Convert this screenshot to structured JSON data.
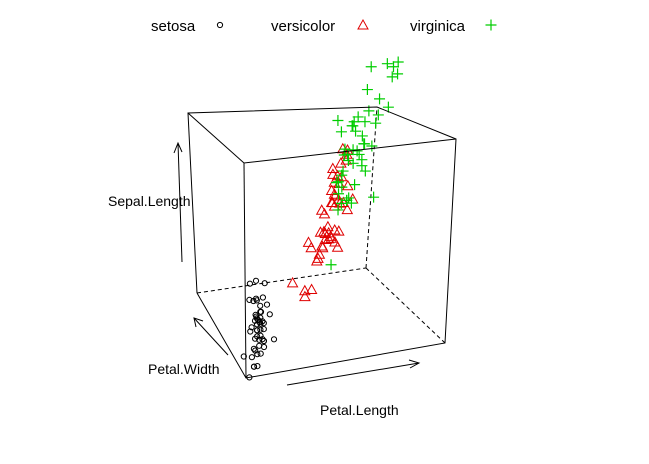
{
  "chart_data": {
    "type": "scatter",
    "projection": "3d-box",
    "title": "",
    "xlabel": "Petal.Length",
    "ylabel": "Petal.Width",
    "zlabel": "Sepal.Length",
    "xlim": [
      1,
      6.9
    ],
    "ylim": [
      0.1,
      2.5
    ],
    "zlim": [
      4.3,
      7.9
    ],
    "legend_position": "top",
    "grid": false,
    "series": [
      {
        "name": "setosa",
        "marker": "circle",
        "color": "#000000",
        "points": [
          [
            1.4,
            0.2,
            5.1
          ],
          [
            1.4,
            0.2,
            4.9
          ],
          [
            1.3,
            0.2,
            4.7
          ],
          [
            1.5,
            0.2,
            4.6
          ],
          [
            1.4,
            0.2,
            5.0
          ],
          [
            1.7,
            0.4,
            5.4
          ],
          [
            1.4,
            0.3,
            4.6
          ],
          [
            1.5,
            0.2,
            5.0
          ],
          [
            1.4,
            0.2,
            4.4
          ],
          [
            1.5,
            0.1,
            4.9
          ],
          [
            1.5,
            0.2,
            5.4
          ],
          [
            1.6,
            0.2,
            4.8
          ],
          [
            1.4,
            0.1,
            4.8
          ],
          [
            1.1,
            0.1,
            4.3
          ],
          [
            1.2,
            0.2,
            5.8
          ],
          [
            1.5,
            0.4,
            5.7
          ],
          [
            1.3,
            0.4,
            5.4
          ],
          [
            1.4,
            0.3,
            5.1
          ],
          [
            1.7,
            0.3,
            5.7
          ],
          [
            1.5,
            0.3,
            5.1
          ],
          [
            1.7,
            0.2,
            5.4
          ],
          [
            1.5,
            0.4,
            5.1
          ],
          [
            1.0,
            0.2,
            4.6
          ],
          [
            1.7,
            0.5,
            5.1
          ],
          [
            1.9,
            0.2,
            4.8
          ],
          [
            1.6,
            0.2,
            5.0
          ],
          [
            1.6,
            0.4,
            5.0
          ],
          [
            1.5,
            0.2,
            5.2
          ],
          [
            1.4,
            0.2,
            5.2
          ],
          [
            1.6,
            0.2,
            4.7
          ],
          [
            1.6,
            0.2,
            4.8
          ],
          [
            1.5,
            0.4,
            5.4
          ],
          [
            1.5,
            0.1,
            5.2
          ],
          [
            1.4,
            0.2,
            5.5
          ],
          [
            1.5,
            0.2,
            4.9
          ],
          [
            1.2,
            0.2,
            5.0
          ],
          [
            1.3,
            0.2,
            5.5
          ],
          [
            1.4,
            0.1,
            4.9
          ],
          [
            1.3,
            0.2,
            4.4
          ],
          [
            1.5,
            0.2,
            5.1
          ],
          [
            1.3,
            0.3,
            5.0
          ],
          [
            1.3,
            0.3,
            4.5
          ],
          [
            1.3,
            0.2,
            4.4
          ],
          [
            1.6,
            0.6,
            5.0
          ],
          [
            1.9,
            0.4,
            5.1
          ],
          [
            1.4,
            0.3,
            4.8
          ],
          [
            1.6,
            0.2,
            5.1
          ],
          [
            1.4,
            0.2,
            4.6
          ],
          [
            1.5,
            0.2,
            5.3
          ],
          [
            1.4,
            0.2,
            5.0
          ]
        ]
      },
      {
        "name": "versicolor",
        "marker": "triangle",
        "color": "#DF0000",
        "points": [
          [
            4.7,
            1.4,
            7.0
          ],
          [
            4.5,
            1.5,
            6.4
          ],
          [
            4.9,
            1.5,
            6.9
          ],
          [
            4.0,
            1.3,
            5.5
          ],
          [
            4.6,
            1.5,
            6.5
          ],
          [
            4.5,
            1.3,
            5.7
          ],
          [
            4.7,
            1.6,
            6.3
          ],
          [
            3.3,
            1.0,
            4.9
          ],
          [
            4.6,
            1.3,
            6.6
          ],
          [
            3.9,
            1.4,
            5.2
          ],
          [
            3.5,
            1.0,
            5.0
          ],
          [
            4.2,
            1.5,
            5.9
          ],
          [
            4.0,
            1.0,
            6.0
          ],
          [
            4.7,
            1.4,
            6.1
          ],
          [
            3.6,
            1.3,
            5.6
          ],
          [
            4.4,
            1.4,
            6.7
          ],
          [
            4.5,
            1.5,
            5.6
          ],
          [
            4.1,
            1.0,
            5.8
          ],
          [
            4.5,
            1.5,
            6.2
          ],
          [
            3.9,
            1.1,
            5.6
          ],
          [
            4.8,
            1.8,
            5.9
          ],
          [
            4.0,
            1.3,
            6.1
          ],
          [
            4.9,
            1.5,
            6.3
          ],
          [
            4.7,
            1.2,
            6.1
          ],
          [
            4.3,
            1.3,
            6.4
          ],
          [
            4.4,
            1.4,
            6.6
          ],
          [
            4.8,
            1.4,
            6.8
          ],
          [
            5.0,
            1.7,
            6.7
          ],
          [
            4.5,
            1.5,
            6.0
          ],
          [
            3.5,
            1.0,
            5.7
          ],
          [
            3.8,
            1.1,
            5.5
          ],
          [
            3.7,
            1.0,
            5.5
          ],
          [
            3.9,
            1.2,
            5.8
          ],
          [
            5.1,
            1.6,
            6.0
          ],
          [
            4.5,
            1.5,
            5.4
          ],
          [
            4.5,
            1.6,
            6.0
          ],
          [
            4.7,
            1.5,
            6.7
          ],
          [
            4.4,
            1.3,
            6.3
          ],
          [
            4.1,
            1.3,
            5.6
          ],
          [
            4.0,
            1.3,
            5.5
          ],
          [
            4.4,
            1.2,
            5.5
          ],
          [
            4.6,
            1.4,
            6.1
          ],
          [
            4.0,
            1.2,
            5.8
          ],
          [
            3.3,
            1.0,
            5.0
          ],
          [
            4.2,
            1.3,
            5.6
          ],
          [
            4.2,
            1.2,
            5.7
          ],
          [
            4.2,
            1.3,
            5.7
          ],
          [
            4.3,
            1.3,
            6.2
          ],
          [
            3.0,
            1.1,
            5.1
          ],
          [
            4.1,
            1.3,
            5.7
          ]
        ]
      },
      {
        "name": "virginica",
        "marker": "plus",
        "color": "#00CD00",
        "points": [
          [
            6.0,
            2.5,
            6.3
          ],
          [
            5.1,
            1.9,
            5.8
          ],
          [
            5.9,
            2.1,
            7.1
          ],
          [
            5.6,
            1.8,
            6.3
          ],
          [
            5.8,
            2.2,
            6.5
          ],
          [
            6.6,
            2.1,
            7.6
          ],
          [
            4.5,
            1.7,
            4.9
          ],
          [
            6.3,
            1.8,
            7.3
          ],
          [
            5.8,
            1.8,
            6.7
          ],
          [
            6.1,
            2.5,
            7.2
          ],
          [
            5.1,
            2.0,
            6.5
          ],
          [
            5.3,
            1.9,
            6.4
          ],
          [
            5.5,
            2.1,
            6.8
          ],
          [
            5.0,
            2.0,
            5.7
          ],
          [
            5.1,
            2.4,
            5.8
          ],
          [
            5.3,
            2.3,
            6.4
          ],
          [
            5.5,
            1.8,
            6.5
          ],
          [
            6.7,
            2.2,
            7.7
          ],
          [
            6.9,
            2.3,
            7.7
          ],
          [
            5.0,
            1.5,
            6.0
          ],
          [
            5.7,
            2.3,
            6.9
          ],
          [
            4.9,
            2.0,
            5.6
          ],
          [
            6.7,
            2.0,
            7.7
          ],
          [
            4.9,
            1.8,
            6.3
          ],
          [
            5.7,
            2.1,
            6.7
          ],
          [
            6.0,
            1.8,
            7.2
          ],
          [
            4.8,
            1.8,
            6.2
          ],
          [
            4.9,
            1.8,
            6.1
          ],
          [
            5.6,
            2.1,
            6.4
          ],
          [
            5.8,
            1.6,
            7.2
          ],
          [
            6.1,
            1.9,
            7.4
          ],
          [
            6.4,
            2.0,
            7.9
          ],
          [
            5.6,
            2.2,
            6.4
          ],
          [
            5.1,
            1.5,
            6.3
          ],
          [
            5.6,
            1.4,
            6.1
          ],
          [
            6.1,
            2.3,
            7.7
          ],
          [
            5.6,
            2.4,
            6.3
          ],
          [
            5.5,
            1.8,
            6.4
          ],
          [
            4.8,
            1.8,
            6.0
          ],
          [
            5.4,
            2.1,
            6.9
          ],
          [
            5.6,
            2.4,
            6.7
          ],
          [
            5.1,
            2.3,
            6.9
          ],
          [
            5.1,
            1.9,
            5.8
          ],
          [
            5.9,
            2.3,
            6.8
          ],
          [
            5.7,
            2.5,
            6.7
          ],
          [
            5.2,
            2.3,
            6.7
          ],
          [
            5.0,
            1.9,
            6.3
          ],
          [
            5.2,
            2.0,
            6.5
          ],
          [
            5.4,
            2.3,
            6.2
          ],
          [
            5.1,
            1.8,
            5.9
          ]
        ]
      }
    ]
  }
}
